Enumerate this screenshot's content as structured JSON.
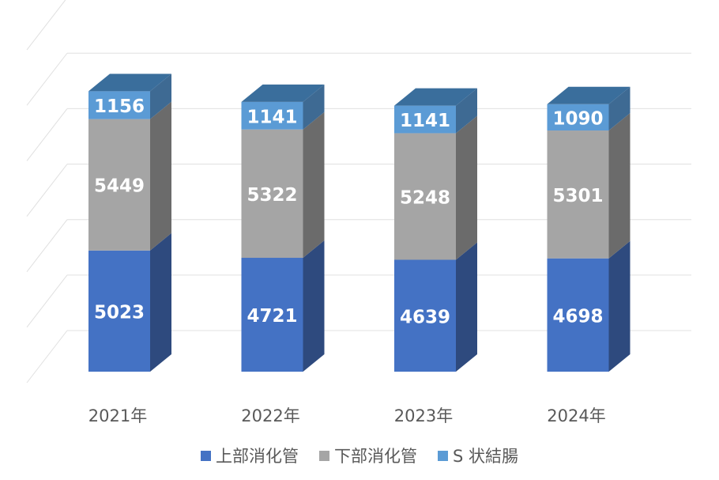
{
  "chart_data": {
    "type": "bar",
    "stacked": true,
    "style": "3d-column",
    "title": "",
    "xlabel": "",
    "ylabel": "",
    "ylim": [
      0,
      13000
    ],
    "grid": true,
    "y_tick_labels_visible": false,
    "legend_position": "bottom",
    "categories": [
      "2021年",
      "2022年",
      "2023年",
      "2024年"
    ],
    "series": [
      {
        "name": "上部消化管",
        "values": [
          5023,
          4721,
          4639,
          4698
        ],
        "color": "#4472C4",
        "side_color": "#2E4A7E",
        "top_color": "#3A66A8"
      },
      {
        "name": "下部消化管",
        "values": [
          5449,
          5322,
          5248,
          5301
        ],
        "color": "#A5A5A5",
        "side_color": "#6B6B6B",
        "top_color": "#8C8C8C"
      },
      {
        "name": "S 状結腸",
        "values": [
          1156,
          1141,
          1141,
          1090
        ],
        "color": "#5B9BD5",
        "side_color": "#3E6A93",
        "top_color": "#3A6E9C"
      }
    ]
  }
}
